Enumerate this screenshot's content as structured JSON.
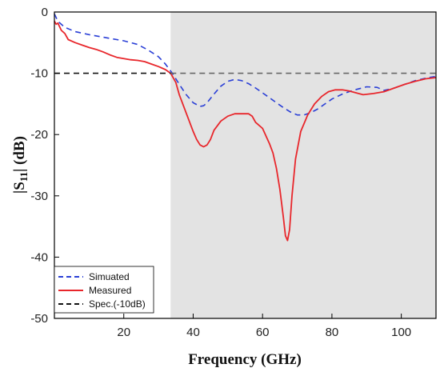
{
  "chart_data": {
    "type": "line",
    "xlabel": "Frequency (GHz)",
    "ylabel_main": "|S",
    "ylabel_sub": "11",
    "ylabel_rest": "| (dB)",
    "xlim": [
      0,
      110
    ],
    "ylim": [
      -50,
      0
    ],
    "x_ticks": [
      20,
      40,
      60,
      80,
      100
    ],
    "y_ticks": [
      0,
      -10,
      -20,
      -30,
      -40,
      -50
    ],
    "shaded_band": {
      "x_start": 33.5,
      "x_end": 110,
      "color": "#e3e3e3"
    },
    "grid": false,
    "legend_position": "bottom-left",
    "series": [
      {
        "name": "Simuated",
        "color": "#2a3fd6",
        "dash": "dashed",
        "x": [
          0,
          1,
          3,
          6,
          10,
          15,
          20,
          24,
          27,
          30,
          32,
          34,
          36,
          38,
          40,
          42,
          43,
          44,
          46,
          48,
          50,
          52,
          54,
          56,
          58,
          60,
          62,
          64,
          66,
          68,
          70,
          72,
          74,
          76,
          78,
          80,
          83,
          86,
          90,
          93,
          95,
          98,
          101,
          104,
          107,
          110
        ],
        "y": [
          -0.3,
          -1.5,
          -2.5,
          -3.2,
          -3.7,
          -4.2,
          -4.7,
          -5.3,
          -6.2,
          -7.3,
          -8.5,
          -10.0,
          -11.8,
          -13.5,
          -14.8,
          -15.4,
          -15.3,
          -14.8,
          -13.4,
          -12.1,
          -11.3,
          -11.0,
          -11.2,
          -11.7,
          -12.4,
          -13.2,
          -14.0,
          -14.8,
          -15.6,
          -16.3,
          -16.8,
          -16.8,
          -16.4,
          -15.8,
          -15.0,
          -14.2,
          -13.4,
          -12.8,
          -12.2,
          -12.3,
          -12.8,
          -12.4,
          -11.8,
          -11.2,
          -10.8,
          -10.5
        ]
      },
      {
        "name": "Measured",
        "color": "#e8262b",
        "dash": "solid",
        "x": [
          0,
          0.5,
          1,
          2,
          3,
          4,
          6,
          8,
          10,
          12,
          14,
          16,
          18,
          20,
          22,
          24,
          26,
          28,
          30,
          32,
          33.5,
          35,
          36,
          38,
          40,
          41,
          42,
          43,
          44,
          45,
          46,
          48,
          50,
          52,
          54,
          56,
          57,
          58,
          60,
          62,
          63,
          64,
          65,
          66,
          66.6,
          67.2,
          67.8,
          68.5,
          69.5,
          71,
          73,
          75,
          77,
          79,
          81,
          83,
          85,
          87,
          89,
          92,
          95,
          98,
          101,
          104,
          107,
          110
        ],
        "y": [
          -1.5,
          -2.0,
          -1.8,
          -3.0,
          -3.5,
          -4.5,
          -5.0,
          -5.4,
          -5.8,
          -6.1,
          -6.5,
          -7.0,
          -7.4,
          -7.6,
          -7.8,
          -7.9,
          -8.1,
          -8.5,
          -8.9,
          -9.4,
          -10.0,
          -11.5,
          -13.5,
          -16.5,
          -19.5,
          -20.8,
          -21.7,
          -22.0,
          -21.7,
          -20.8,
          -19.3,
          -17.8,
          -17.0,
          -16.6,
          -16.6,
          -16.6,
          -17.0,
          -18.0,
          -19.0,
          -21.5,
          -23.0,
          -25.5,
          -29.0,
          -33.5,
          -36.5,
          -37.3,
          -35.5,
          -30.0,
          -24.0,
          -19.5,
          -16.8,
          -15.0,
          -13.8,
          -13.0,
          -12.7,
          -12.7,
          -12.9,
          -13.2,
          -13.5,
          -13.3,
          -13.0,
          -12.4,
          -11.8,
          -11.3,
          -10.9,
          -10.7
        ]
      },
      {
        "name": "Spec.(-10dB)",
        "color": "#111111",
        "dash": "dashed",
        "x": [
          0,
          33.5
        ],
        "y": [
          -10,
          -10
        ]
      },
      {
        "color": "#666666",
        "dash": "dashed",
        "x": [
          33.5,
          110
        ],
        "y": [
          -10,
          -10
        ]
      }
    ]
  }
}
